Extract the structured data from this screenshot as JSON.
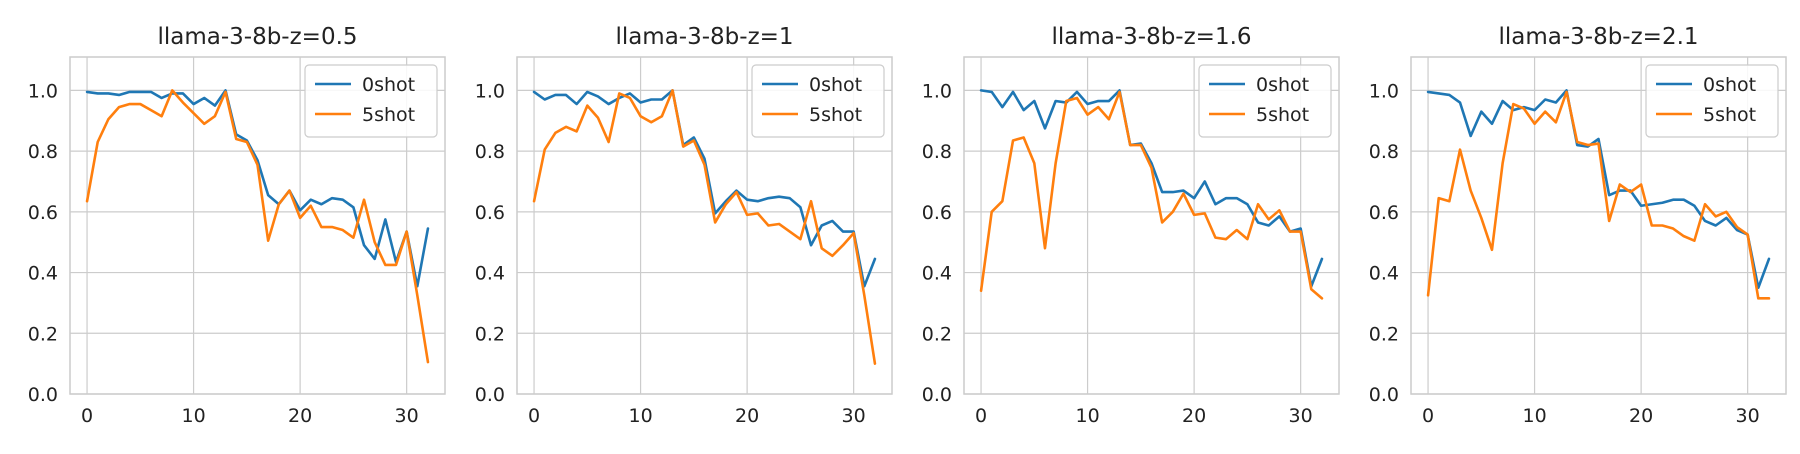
{
  "colors": {
    "0shot": "#1f77b4",
    "5shot": "#ff7f0e",
    "grid": "#cccccc",
    "text": "#222222"
  },
  "chart_data": [
    {
      "type": "line",
      "title": "llama-3-8b-z=0.5",
      "xlabel": "",
      "ylabel": "",
      "xlim": [
        -1.6,
        33.6
      ],
      "ylim": [
        0.0,
        1.11
      ],
      "xticks": [
        0,
        10,
        20,
        30
      ],
      "yticks": [
        0.0,
        0.2,
        0.4,
        0.6,
        0.8,
        1.0
      ],
      "grid": true,
      "legend_position": "upper right",
      "x": [
        0,
        1,
        2,
        3,
        4,
        5,
        6,
        7,
        8,
        9,
        10,
        11,
        12,
        13,
        14,
        15,
        16,
        17,
        18,
        19,
        20,
        21,
        22,
        23,
        24,
        25,
        26,
        27,
        28,
        29,
        30,
        31,
        32
      ],
      "series": [
        {
          "name": "0shot",
          "values": [
            0.995,
            0.99,
            0.99,
            0.985,
            0.995,
            0.995,
            0.995,
            0.975,
            0.99,
            0.99,
            0.955,
            0.975,
            0.95,
            1.0,
            0.855,
            0.835,
            0.77,
            0.655,
            0.625,
            0.67,
            0.605,
            0.64,
            0.625,
            0.645,
            0.64,
            0.615,
            0.49,
            0.445,
            0.575,
            0.435,
            0.535,
            0.355,
            0.545
          ]
        },
        {
          "name": "5shot",
          "values": [
            0.635,
            0.83,
            0.905,
            0.945,
            0.955,
            0.955,
            0.935,
            0.915,
            1.0,
            0.96,
            0.925,
            0.89,
            0.915,
            0.995,
            0.84,
            0.83,
            0.755,
            0.505,
            0.625,
            0.67,
            0.58,
            0.62,
            0.55,
            0.55,
            0.54,
            0.515,
            0.64,
            0.5,
            0.425,
            0.425,
            0.535,
            0.325,
            0.105
          ]
        }
      ]
    },
    {
      "type": "line",
      "title": "llama-3-8b-z=1",
      "xlabel": "",
      "ylabel": "",
      "xlim": [
        -1.6,
        33.6
      ],
      "ylim": [
        0.0,
        1.11
      ],
      "xticks": [
        0,
        10,
        20,
        30
      ],
      "yticks": [
        0.0,
        0.2,
        0.4,
        0.6,
        0.8,
        1.0
      ],
      "grid": true,
      "legend_position": "upper right",
      "x": [
        0,
        1,
        2,
        3,
        4,
        5,
        6,
        7,
        8,
        9,
        10,
        11,
        12,
        13,
        14,
        15,
        16,
        17,
        18,
        19,
        20,
        21,
        22,
        23,
        24,
        25,
        26,
        27,
        28,
        29,
        30,
        31,
        32
      ],
      "series": [
        {
          "name": "0shot",
          "values": [
            0.995,
            0.97,
            0.985,
            0.985,
            0.955,
            0.995,
            0.98,
            0.955,
            0.975,
            0.99,
            0.96,
            0.97,
            0.97,
            1.0,
            0.82,
            0.845,
            0.775,
            0.595,
            0.635,
            0.67,
            0.64,
            0.635,
            0.645,
            0.65,
            0.645,
            0.615,
            0.49,
            0.555,
            0.57,
            0.535,
            0.535,
            0.355,
            0.445
          ]
        },
        {
          "name": "5shot",
          "values": [
            0.635,
            0.805,
            0.86,
            0.88,
            0.865,
            0.95,
            0.91,
            0.83,
            0.99,
            0.975,
            0.915,
            0.895,
            0.915,
            1.0,
            0.815,
            0.835,
            0.755,
            0.565,
            0.625,
            0.665,
            0.59,
            0.595,
            0.555,
            0.56,
            0.535,
            0.51,
            0.635,
            0.48,
            0.455,
            0.49,
            0.53,
            0.325,
            0.1
          ]
        }
      ]
    },
    {
      "type": "line",
      "title": "llama-3-8b-z=1.6",
      "xlabel": "",
      "ylabel": "",
      "xlim": [
        -1.6,
        33.6
      ],
      "ylim": [
        0.0,
        1.11
      ],
      "xticks": [
        0,
        10,
        20,
        30
      ],
      "yticks": [
        0.0,
        0.2,
        0.4,
        0.6,
        0.8,
        1.0
      ],
      "grid": true,
      "legend_position": "upper right",
      "x": [
        0,
        1,
        2,
        3,
        4,
        5,
        6,
        7,
        8,
        9,
        10,
        11,
        12,
        13,
        14,
        15,
        16,
        17,
        18,
        19,
        20,
        21,
        22,
        23,
        24,
        25,
        26,
        27,
        28,
        29,
        30,
        31,
        32
      ],
      "series": [
        {
          "name": "0shot",
          "values": [
            1.0,
            0.995,
            0.945,
            0.995,
            0.935,
            0.965,
            0.875,
            0.965,
            0.96,
            0.995,
            0.955,
            0.965,
            0.965,
            1.0,
            0.82,
            0.825,
            0.76,
            0.665,
            0.665,
            0.67,
            0.645,
            0.7,
            0.625,
            0.645,
            0.645,
            0.625,
            0.565,
            0.555,
            0.585,
            0.535,
            0.545,
            0.355,
            0.445
          ]
        },
        {
          "name": "5shot",
          "values": [
            0.34,
            0.6,
            0.635,
            0.835,
            0.845,
            0.76,
            0.48,
            0.76,
            0.965,
            0.975,
            0.92,
            0.945,
            0.905,
            0.995,
            0.82,
            0.82,
            0.745,
            0.565,
            0.6,
            0.66,
            0.59,
            0.595,
            0.515,
            0.51,
            0.54,
            0.51,
            0.625,
            0.575,
            0.605,
            0.535,
            0.535,
            0.345,
            0.315
          ]
        }
      ]
    },
    {
      "type": "line",
      "title": "llama-3-8b-z=2.1",
      "xlabel": "",
      "ylabel": "",
      "xlim": [
        -1.6,
        33.6
      ],
      "ylim": [
        0.0,
        1.11
      ],
      "xticks": [
        0,
        10,
        20,
        30
      ],
      "yticks": [
        0.0,
        0.2,
        0.4,
        0.6,
        0.8,
        1.0
      ],
      "grid": true,
      "legend_position": "upper right",
      "x": [
        0,
        1,
        2,
        3,
        4,
        5,
        6,
        7,
        8,
        9,
        10,
        11,
        12,
        13,
        14,
        15,
        16,
        17,
        18,
        19,
        20,
        21,
        22,
        23,
        24,
        25,
        26,
        27,
        28,
        29,
        30,
        31,
        32
      ],
      "series": [
        {
          "name": "0shot",
          "values": [
            0.995,
            0.99,
            0.985,
            0.96,
            0.85,
            0.93,
            0.89,
            0.965,
            0.935,
            0.945,
            0.935,
            0.97,
            0.96,
            1.0,
            0.82,
            0.815,
            0.84,
            0.655,
            0.67,
            0.67,
            0.62,
            0.625,
            0.63,
            0.64,
            0.64,
            0.62,
            0.57,
            0.555,
            0.58,
            0.54,
            0.525,
            0.35,
            0.445
          ]
        },
        {
          "name": "5shot",
          "values": [
            0.325,
            0.645,
            0.635,
            0.805,
            0.67,
            0.58,
            0.475,
            0.76,
            0.955,
            0.94,
            0.89,
            0.93,
            0.895,
            0.995,
            0.83,
            0.82,
            0.825,
            0.57,
            0.69,
            0.665,
            0.69,
            0.555,
            0.555,
            0.545,
            0.52,
            0.505,
            0.625,
            0.585,
            0.6,
            0.55,
            0.525,
            0.315,
            0.315
          ]
        }
      ]
    }
  ]
}
